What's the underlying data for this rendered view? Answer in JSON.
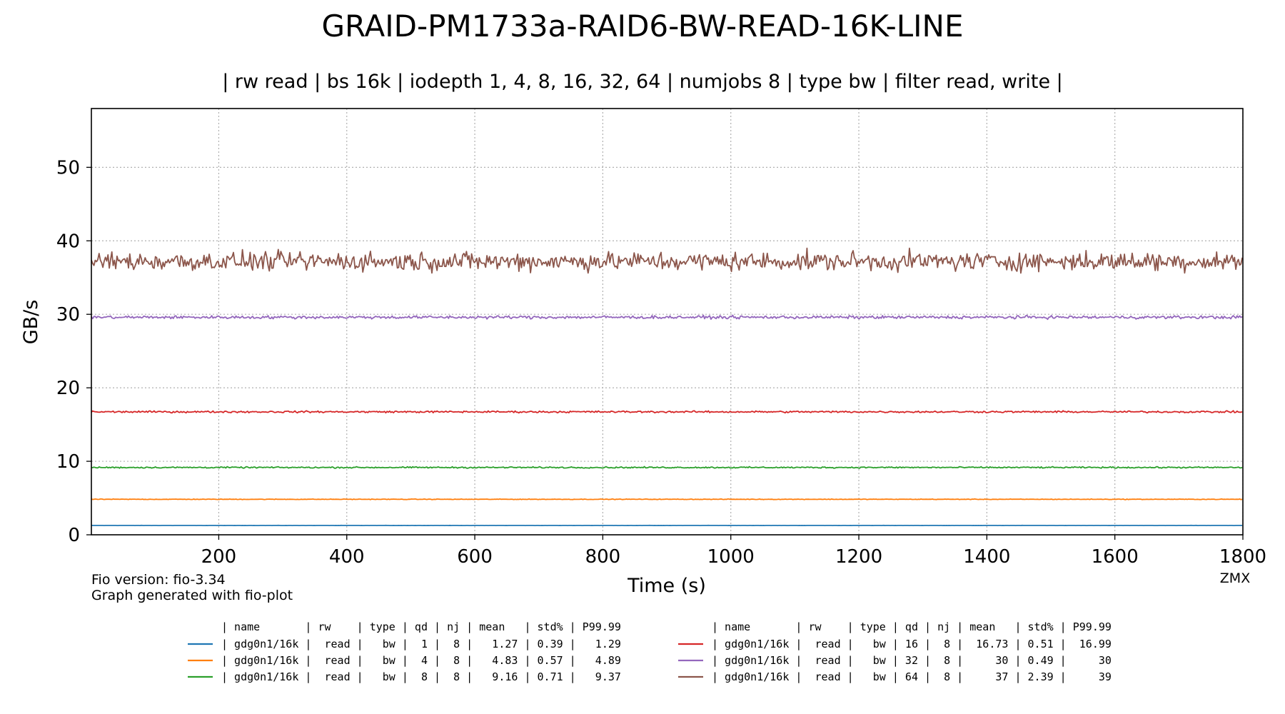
{
  "chart_data": {
    "type": "line",
    "title": "GRAID-PM1733a-RAID6-BW-READ-16K-LINE",
    "subtitle": "| rw read | bs 16k | iodepth 1, 4, 8, 16, 32, 64 | numjobs 8 | type bw | filter read, write |",
    "xlabel": "Time (s)",
    "ylabel": "GB/s",
    "xlim": [
      1,
      1800
    ],
    "ylim": [
      0,
      58
    ],
    "xticks": [
      200,
      400,
      600,
      800,
      1000,
      1200,
      1400,
      1600,
      1800
    ],
    "yticks": [
      0,
      10,
      20,
      30,
      40,
      50
    ],
    "grid": true,
    "footnote_version": "Fio version: fio-3.34",
    "footnote_generator": "Graph generated with fio-plot",
    "corner_label": "ZMX",
    "legend": {
      "header": "| name       | rw    | type | qd | nj | mean   | std% | P99.99",
      "left_header": "| name       | rw    | type | qd | nj | mean   | std% | P99.99",
      "right_header": "| name       | rw    | type | qd | nj | mean   | std% | P99.99"
    },
    "series": [
      {
        "color": "#1f77b4",
        "row": "| gdg0n1/16k |  read |   bw |  1 |  8 |   1.27 | 0.39 |   1.29",
        "mean": 1.27,
        "std_pct": 0.39,
        "p9999": 1.29
      },
      {
        "color": "#ff7f0e",
        "row": "| gdg0n1/16k |  read |   bw |  4 |  8 |   4.83 | 0.57 |   4.89",
        "mean": 4.83,
        "std_pct": 0.57,
        "p9999": 4.89
      },
      {
        "color": "#2ca02c",
        "row": "| gdg0n1/16k |  read |   bw |  8 |  8 |   9.16 | 0.71 |   9.37",
        "mean": 9.16,
        "std_pct": 0.71,
        "p9999": 9.37
      },
      {
        "color": "#d62728",
        "row": "| gdg0n1/16k |  read |   bw | 16 |  8 |  16.73 | 0.51 |  16.99",
        "mean": 16.73,
        "std_pct": 0.51,
        "p9999": 16.99
      },
      {
        "color": "#9467bd",
        "row": "| gdg0n1/16k |  read |   bw | 32 |  8 |     30 | 0.49 |     30",
        "mean": 29.6,
        "std_pct": 0.49,
        "p9999": 30
      },
      {
        "color": "#8c564b",
        "row": "| gdg0n1/16k |  read |   bw | 64 |  8 |     37 | 2.39 |     39",
        "mean": 37.2,
        "std_pct": 2.39,
        "p9999": 39
      }
    ]
  }
}
